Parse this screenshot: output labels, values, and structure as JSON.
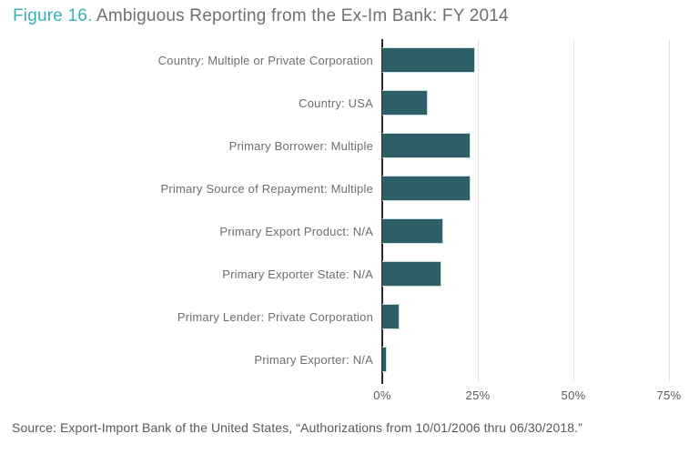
{
  "title": {
    "prefix": "Figure 16.",
    "text": " Ambiguous Reporting from the Ex-Im Bank: FY 2014"
  },
  "colors": {
    "accent_teal": "#39afb9",
    "title_gray": "#6e6f72",
    "bar_fill": "#2e5f66",
    "gridline": "#e4e4e4",
    "axis_line": "#2a2a2a",
    "label_gray": "#6d6e71",
    "source_gray": "#58595b"
  },
  "chart_data": {
    "type": "bar",
    "orientation": "horizontal",
    "title": "Figure 16. Ambiguous Reporting from the Ex-Im Bank: FY 2014",
    "categories": [
      "Country: Multiple or Private Corporation",
      "Country: USA",
      "Primary Borrower: Multiple",
      "Primary Source of Repayment: Multiple",
      "Primary Export Product: N/A",
      "Primary Exporter State: N/A",
      "Primary Lender: Private Corporation",
      "Primary Exporter: N/A"
    ],
    "values": [
      24.3,
      11.9,
      23.0,
      23.0,
      15.9,
      15.4,
      4.5,
      1.2
    ],
    "unit": "%",
    "x_ticks": [
      "0%",
      "25%",
      "50%",
      "75%"
    ],
    "x_tick_values": [
      0,
      25,
      50,
      75
    ],
    "xlim": [
      0,
      82.8
    ],
    "grid": true,
    "legend": "none"
  },
  "source": "Source: Export-Import Bank of the United States, “Authorizations from 10/01/2006 thru 06/30/2018.”"
}
